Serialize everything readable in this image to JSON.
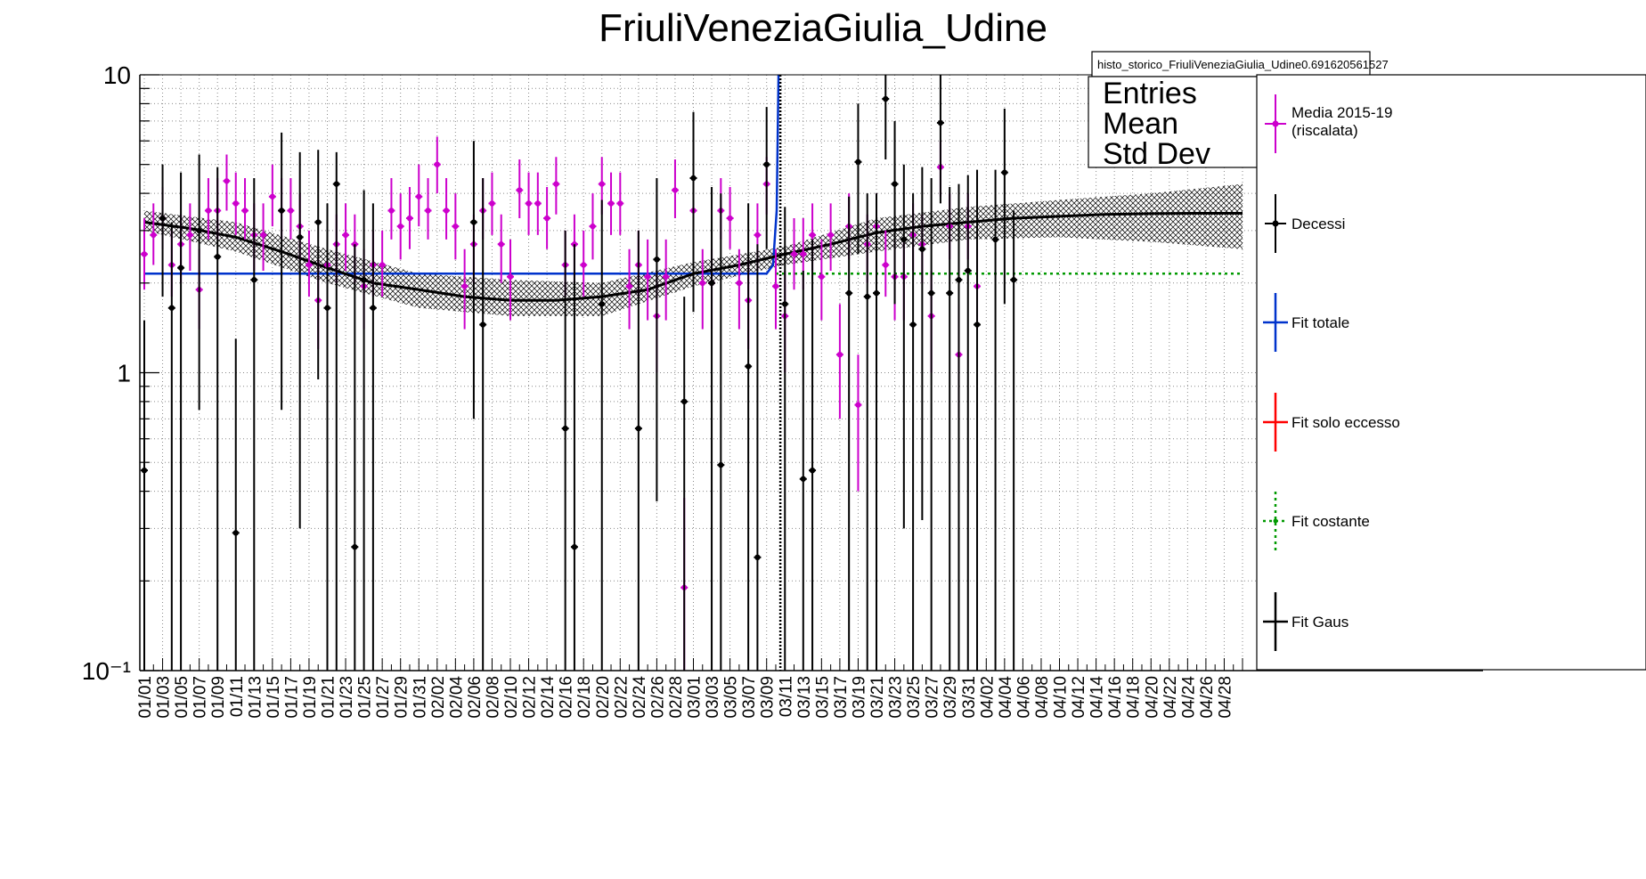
{
  "chart_data": {
    "type": "scatter",
    "title": "FriuliVeneziaGiulia_Udine",
    "xlabel": "",
    "ylabel": "",
    "y_scale": "log",
    "ylim": [
      0.1,
      10
    ],
    "y_tick_labels": [
      "10",
      "1",
      "10⁻¹"
    ],
    "grid": true,
    "x_tick_labels": [
      "01/01",
      "01/03",
      "01/05",
      "01/07",
      "01/09",
      "01/11",
      "01/13",
      "01/15",
      "01/17",
      "01/19",
      "01/21",
      "01/23",
      "01/25",
      "01/27",
      "01/29",
      "01/31",
      "02/02",
      "02/04",
      "02/06",
      "02/08",
      "02/10",
      "02/12",
      "02/14",
      "02/16",
      "02/18",
      "02/20",
      "02/22",
      "02/24",
      "02/26",
      "02/28",
      "03/01",
      "03/03",
      "03/05",
      "03/07",
      "03/09",
      "03/11",
      "03/13",
      "03/15",
      "03/17",
      "03/19",
      "03/21",
      "03/23",
      "03/25",
      "03/27",
      "03/29",
      "03/31",
      "04/02",
      "04/04",
      "04/06",
      "04/08",
      "04/10",
      "04/12",
      "04/14",
      "04/16",
      "04/18",
      "04/20",
      "04/22",
      "04/24",
      "04/26",
      "04/28"
    ],
    "n_bins": 121,
    "stats_box": {
      "name": "histo_storico_FriuliVeneziaGiulia_Udine0.691620561527",
      "rows": [
        "Entries",
        "Mean",
        "Std Dev"
      ]
    },
    "legend_placement": "right",
    "legend": [
      {
        "label": "Media 2015-19",
        "label2": "(riscalata)",
        "color": "#cc00cc",
        "style": "marker"
      },
      {
        "label": "Decessi",
        "label2": "",
        "color": "#000000",
        "style": "marker"
      },
      {
        "label": "Fit totale",
        "label2": "",
        "color": "#0033cc",
        "style": "line"
      },
      {
        "label": "Fit solo eccesso",
        "label2": "",
        "color": "#ff0000",
        "style": "line"
      },
      {
        "label": "Fit costante",
        "label2": "",
        "color": "#009900",
        "style": "dotted"
      },
      {
        "label": "Fit Gaus",
        "label2": "",
        "color": "#000000",
        "style": "line"
      }
    ],
    "vertical_marker_day": 69.5,
    "series": [
      {
        "name": "Media 2015-19 (riscalata)",
        "color": "#cc00cc",
        "points": [
          [
            0,
            2.5,
            1.9,
            3.3
          ],
          [
            1,
            2.9,
            2.3,
            3.7
          ],
          [
            2,
            3.3,
            2.6,
            4.2
          ],
          [
            3,
            2.3,
            1.8,
            3.0
          ],
          [
            4,
            2.7,
            2.0,
            3.4
          ],
          [
            5,
            2.9,
            2.2,
            3.7
          ],
          [
            6,
            1.9,
            1.4,
            2.6
          ],
          [
            7,
            3.5,
            2.8,
            4.5
          ],
          [
            8,
            3.5,
            2.8,
            4.5
          ],
          [
            9,
            4.4,
            3.5,
            5.4
          ],
          [
            10,
            3.7,
            2.9,
            4.7
          ],
          [
            11,
            3.5,
            2.8,
            4.5
          ],
          [
            12,
            2.9,
            2.2,
            3.7
          ],
          [
            13,
            2.9,
            2.2,
            3.7
          ],
          [
            14,
            3.9,
            3.1,
            5.0
          ],
          [
            15,
            3.5,
            2.8,
            4.5
          ],
          [
            16,
            3.5,
            2.8,
            4.5
          ],
          [
            17,
            3.1,
            2.4,
            4.0
          ],
          [
            18,
            2.3,
            1.8,
            3.0
          ],
          [
            19,
            1.75,
            1.2,
            2.4
          ],
          [
            20,
            2.3,
            1.8,
            3.0
          ],
          [
            21,
            2.7,
            2.0,
            3.4
          ],
          [
            22,
            2.9,
            2.2,
            3.7
          ],
          [
            23,
            2.7,
            2.0,
            3.4
          ],
          [
            24,
            1.95,
            1.4,
            2.6
          ],
          [
            25,
            2.3,
            1.8,
            3.0
          ],
          [
            26,
            2.3,
            1.8,
            3.0
          ],
          [
            27,
            3.5,
            2.8,
            4.5
          ],
          [
            28,
            3.1,
            2.4,
            4.0
          ],
          [
            29,
            3.3,
            2.6,
            4.2
          ],
          [
            30,
            3.9,
            3.1,
            5.0
          ],
          [
            31,
            3.5,
            2.8,
            4.5
          ],
          [
            32,
            5.0,
            4.0,
            6.2
          ],
          [
            33,
            3.5,
            2.8,
            4.5
          ],
          [
            34,
            3.1,
            2.4,
            4.0
          ],
          [
            35,
            1.95,
            1.4,
            2.6
          ],
          [
            36,
            2.7,
            2.0,
            3.4
          ],
          [
            37,
            3.5,
            2.8,
            4.5
          ],
          [
            38,
            3.7,
            2.9,
            4.7
          ],
          [
            39,
            2.7,
            2.0,
            3.4
          ],
          [
            40,
            2.1,
            1.5,
            2.8
          ],
          [
            41,
            4.1,
            3.3,
            5.2
          ],
          [
            42,
            3.7,
            2.9,
            4.7
          ],
          [
            43,
            3.7,
            2.9,
            4.7
          ],
          [
            44,
            3.3,
            2.6,
            4.2
          ],
          [
            45,
            4.3,
            3.4,
            5.3
          ],
          [
            46,
            2.3,
            1.8,
            3.0
          ],
          [
            47,
            2.7,
            2.0,
            3.4
          ],
          [
            48,
            2.3,
            1.8,
            3.0
          ],
          [
            49,
            3.1,
            2.4,
            4.0
          ],
          [
            50,
            4.3,
            3.4,
            5.3
          ],
          [
            51,
            3.7,
            2.9,
            4.7
          ],
          [
            52,
            3.7,
            2.9,
            4.7
          ],
          [
            53,
            1.95,
            1.4,
            2.6
          ],
          [
            54,
            2.3,
            1.8,
            3.0
          ],
          [
            55,
            2.1,
            1.5,
            2.8
          ],
          [
            56,
            1.55,
            1.0,
            2.2
          ],
          [
            57,
            2.1,
            1.5,
            2.8
          ],
          [
            58,
            4.1,
            3.3,
            5.2
          ],
          [
            59,
            0.19,
            0.1,
            0.38
          ],
          [
            60,
            3.5,
            2.8,
            4.5
          ],
          [
            61,
            2.0,
            1.4,
            2.6
          ],
          [
            62,
            2.0,
            1.4,
            2.6
          ],
          [
            63,
            3.5,
            2.8,
            4.5
          ],
          [
            64,
            3.3,
            2.6,
            4.2
          ],
          [
            65,
            2.0,
            1.4,
            2.6
          ],
          [
            66,
            1.75,
            1.2,
            2.4
          ],
          [
            67,
            2.9,
            2.2,
            3.7
          ],
          [
            68,
            4.3,
            3.4,
            5.3
          ],
          [
            69,
            1.95,
            1.4,
            2.6
          ],
          [
            70,
            1.55,
            1.0,
            2.2
          ],
          [
            71,
            2.5,
            1.9,
            3.3
          ],
          [
            72,
            2.5,
            1.9,
            3.3
          ],
          [
            73,
            2.9,
            2.2,
            3.7
          ],
          [
            74,
            2.1,
            1.5,
            2.8
          ],
          [
            75,
            2.9,
            2.2,
            3.7
          ],
          [
            76,
            1.15,
            0.7,
            1.7
          ],
          [
            77,
            3.1,
            2.4,
            4.0
          ],
          [
            78,
            0.78,
            0.4,
            1.15
          ],
          [
            79,
            2.7,
            2.0,
            3.4
          ],
          [
            80,
            3.1,
            2.4,
            4.0
          ],
          [
            81,
            2.3,
            1.8,
            3.0
          ],
          [
            82,
            2.1,
            1.5,
            2.8
          ],
          [
            83,
            2.1,
            1.5,
            2.8
          ],
          [
            84,
            2.9,
            2.2,
            3.7
          ],
          [
            85,
            2.7,
            2.0,
            3.4
          ],
          [
            86,
            1.55,
            1.0,
            2.2
          ],
          [
            87,
            4.9,
            3.9,
            6.0
          ],
          [
            88,
            3.1,
            2.4,
            4.0
          ],
          [
            89,
            1.15,
            0.7,
            1.7
          ],
          [
            90,
            3.1,
            2.4,
            4.0
          ],
          [
            91,
            1.95,
            1.4,
            2.6
          ]
        ]
      },
      {
        "name": "Decessi",
        "color": "#000000",
        "points": [
          [
            0,
            0.47,
            0.1,
            1.5
          ],
          [
            2,
            3.3,
            1.8,
            5.0
          ],
          [
            3,
            1.65,
            0.1,
            3.2
          ],
          [
            4,
            2.25,
            0.1,
            4.7
          ],
          [
            6,
            3.0,
            0.75,
            5.4
          ],
          [
            8,
            2.45,
            0.1,
            4.9
          ],
          [
            10,
            0.29,
            0.1,
            1.3
          ],
          [
            12,
            2.05,
            0.1,
            4.5
          ],
          [
            15,
            3.5,
            0.75,
            6.4
          ],
          [
            17,
            2.85,
            0.3,
            5.5
          ],
          [
            19,
            3.2,
            0.95,
            5.6
          ],
          [
            20,
            1.65,
            0.1,
            3.7
          ],
          [
            21,
            4.3,
            0.1,
            5.5
          ],
          [
            23,
            0.26,
            0.1,
            2.7
          ],
          [
            24,
            2.05,
            0.1,
            4.1
          ],
          [
            25,
            1.65,
            0.1,
            3.7
          ],
          [
            36,
            3.2,
            0.7,
            6.0
          ],
          [
            37,
            1.45,
            0.1,
            4.5
          ],
          [
            46,
            0.65,
            0.1,
            3.0
          ],
          [
            47,
            0.26,
            0.1,
            2.7
          ],
          [
            50,
            1.7,
            0.1,
            3.8
          ],
          [
            54,
            0.65,
            0.1,
            3.0
          ],
          [
            56,
            2.4,
            0.37,
            4.5
          ],
          [
            59,
            0.8,
            0.1,
            1.8
          ],
          [
            60,
            4.5,
            1.6,
            7.5
          ],
          [
            62,
            2.0,
            0.1,
            4.2
          ],
          [
            63,
            0.49,
            0.1,
            4.0
          ],
          [
            66,
            1.05,
            0.1,
            3.7
          ],
          [
            67,
            0.24,
            0.1,
            2.7
          ],
          [
            68,
            5.0,
            2.6,
            7.8
          ],
          [
            70,
            1.7,
            0.1,
            3.6
          ],
          [
            72,
            0.44,
            0.1,
            2.2
          ],
          [
            73,
            0.47,
            0.1,
            2.8
          ],
          [
            77,
            1.85,
            0.1,
            3.9
          ],
          [
            78,
            5.1,
            2.5,
            8.0
          ],
          [
            79,
            1.8,
            0.1,
            4.0
          ],
          [
            80,
            1.85,
            0.1,
            4.0
          ],
          [
            81,
            8.3,
            5.2,
            10.0
          ],
          [
            82,
            4.3,
            1.7,
            7.0
          ],
          [
            83,
            2.8,
            0.3,
            5.0
          ],
          [
            84,
            1.45,
            0.1,
            4.0
          ],
          [
            85,
            2.6,
            0.32,
            4.9
          ],
          [
            86,
            1.85,
            0.1,
            4.5
          ],
          [
            87,
            6.9,
            3.7,
            10.0
          ],
          [
            88,
            1.85,
            0.1,
            4.2
          ],
          [
            89,
            2.05,
            0.1,
            4.3
          ],
          [
            90,
            2.2,
            0.1,
            4.6
          ],
          [
            91,
            1.45,
            0.1,
            4.8
          ],
          [
            93,
            2.8,
            0.1,
            4.8
          ],
          [
            94,
            4.7,
            1.7,
            7.7
          ],
          [
            95,
            2.05,
            0.1,
            3.5
          ]
        ]
      }
    ],
    "fit_gaus": {
      "name": "Fit Gaus",
      "color": "#000000",
      "points": [
        [
          0,
          3.2
        ],
        [
          5,
          3.05
        ],
        [
          10,
          2.85
        ],
        [
          15,
          2.55
        ],
        [
          20,
          2.25
        ],
        [
          25,
          2.0
        ],
        [
          30,
          1.9
        ],
        [
          35,
          1.8
        ],
        [
          40,
          1.75
        ],
        [
          45,
          1.75
        ],
        [
          50,
          1.8
        ],
        [
          55,
          1.9
        ],
        [
          60,
          2.15
        ],
        [
          65,
          2.3
        ],
        [
          70,
          2.5
        ],
        [
          75,
          2.7
        ],
        [
          80,
          2.95
        ],
        [
          85,
          3.1
        ],
        [
          90,
          3.2
        ],
        [
          95,
          3.3
        ],
        [
          100,
          3.35
        ],
        [
          105,
          3.4
        ],
        [
          110,
          3.42
        ],
        [
          115,
          3.43
        ],
        [
          120,
          3.43
        ]
      ],
      "band_upper": [
        [
          0,
          3.5
        ],
        [
          10,
          3.2
        ],
        [
          20,
          2.6
        ],
        [
          30,
          2.15
        ],
        [
          40,
          2.05
        ],
        [
          50,
          2.0
        ],
        [
          60,
          2.35
        ],
        [
          70,
          2.65
        ],
        [
          80,
          3.3
        ],
        [
          90,
          3.6
        ],
        [
          100,
          3.8
        ],
        [
          110,
          4.0
        ],
        [
          120,
          4.3
        ]
      ],
      "band_lower": [
        [
          0,
          3.0
        ],
        [
          10,
          2.55
        ],
        [
          20,
          2.0
        ],
        [
          30,
          1.65
        ],
        [
          40,
          1.55
        ],
        [
          50,
          1.55
        ],
        [
          60,
          1.95
        ],
        [
          70,
          2.3
        ],
        [
          80,
          2.55
        ],
        [
          90,
          2.8
        ],
        [
          100,
          2.85
        ],
        [
          110,
          2.75
        ],
        [
          120,
          2.6
        ]
      ]
    },
    "fit_costante": {
      "name": "Fit costante",
      "color": "#009900",
      "value": 2.15,
      "x_start": 69,
      "x_end": 120
    },
    "fit_totale": {
      "name": "Fit totale",
      "color": "#0033cc",
      "points": [
        [
          0,
          2.15
        ],
        [
          68,
          2.15
        ],
        [
          68.7,
          2.3
        ],
        [
          69.1,
          3.5
        ],
        [
          69.3,
          10
        ]
      ]
    }
  }
}
